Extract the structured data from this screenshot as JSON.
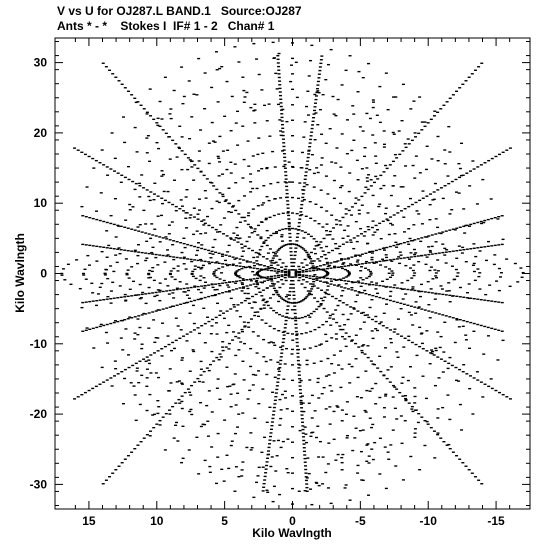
{
  "header": {
    "line1": "V vs U for OJ287.L BAND.1   Source:OJ287",
    "line2": "Ants * - *    Stokes I  IF# 1 - 2   Chan# 1"
  },
  "chart_data": {
    "type": "scatter",
    "title": "V vs U for OJ287.L BAND.1   Source:OJ287",
    "subtitle": "Ants * - *    Stokes I  IF# 1 - 2   Chan# 1",
    "xlabel": "Kilo Wavlngth",
    "ylabel": "Kilo Wavlngth",
    "xlim": [
      17.5,
      -17.5
    ],
    "ylim": [
      -33.5,
      33.5
    ],
    "x_direction": "decreasing left-to-right",
    "xticks": [
      15,
      10,
      5,
      0,
      -5,
      -10,
      -15
    ],
    "yticks": [
      -30,
      -20,
      -10,
      0,
      10,
      20,
      30
    ],
    "xtick_labels": [
      "15",
      "10",
      "5",
      "0",
      "-5",
      "-10",
      "-15"
    ],
    "ytick_labels": [
      "-30",
      "-20",
      "-10",
      "0",
      "10",
      "20",
      "30"
    ],
    "grid": false,
    "marker": "small dash",
    "marker_color": "#000000",
    "description_of_pattern": "uv-coverage: symmetric tracks radiating from origin; dense arms near +/-30 deg and along V axis",
    "arms": [
      {
        "angle_deg": 28,
        "length": 17.5
      },
      {
        "angle_deg": -28,
        "length": 17.5
      },
      {
        "angle_deg": 88,
        "length": 31
      },
      {
        "angle_deg": 94,
        "length": 31
      },
      {
        "angle_deg": 65,
        "length": 33
      },
      {
        "angle_deg": 115,
        "length": 33
      },
      {
        "angle_deg": 48,
        "length": 24
      },
      {
        "angle_deg": 132,
        "length": 24
      },
      {
        "angle_deg": 15,
        "length": 16
      },
      {
        "angle_deg": 165,
        "length": 16
      }
    ]
  }
}
